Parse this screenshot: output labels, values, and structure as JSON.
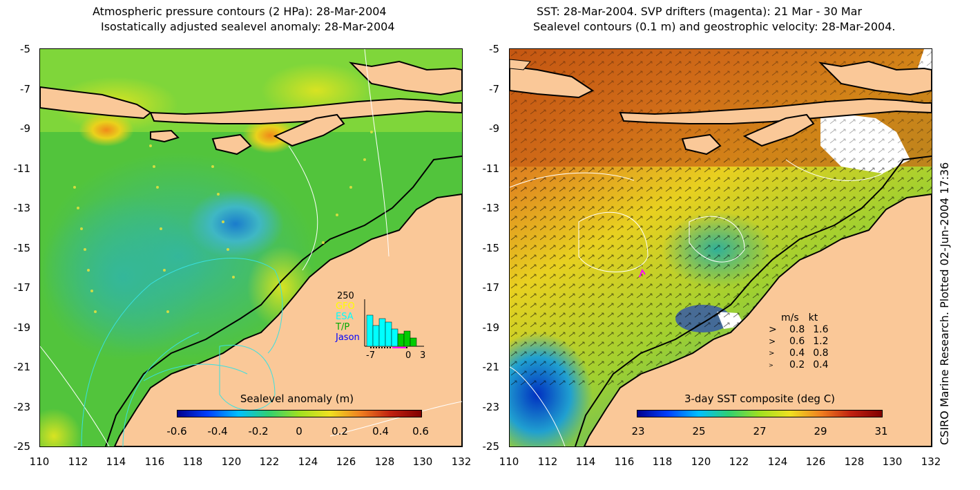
{
  "left_panel": {
    "title_line1": "Atmospheric pressure contours (2 HPa): 28-Mar-2004",
    "title_line2": "Isostatically adjusted sealevel anomaly: 28-Mar-2004",
    "colorbar_title": "Sealevel anomaly (m)",
    "colorbar_ticks": [
      "-0.6",
      "-0.4",
      "-0.2",
      "0",
      "0.2",
      "0.4",
      "0.6"
    ],
    "inset": {
      "ymax_label": "250",
      "satellites": [
        "GFO",
        "ESA",
        "T/P",
        "Jason"
      ],
      "satellite_colors": [
        "#ffff00",
        "#00ffff",
        "#00cc00",
        "#0000ff"
      ],
      "x_ticks": [
        "-7",
        "0",
        "3"
      ]
    }
  },
  "right_panel": {
    "title_line1": "SST: 28-Mar-2004. SVP drifters (magenta): 21 Mar - 30 Mar",
    "title_line2": "Sealevel contours (0.1 m) and geostrophic velocity: 28-Mar-2004.",
    "colorbar_title": "3-day SST composite (deg C)",
    "colorbar_ticks": [
      "23",
      "25",
      "27",
      "29",
      "31"
    ],
    "velocity_legend": {
      "header_ms": "m/s",
      "header_kt": "kt",
      "rows": [
        {
          "ms": "0.8",
          "kt": "1.6"
        },
        {
          "ms": "0.6",
          "kt": "1.2"
        },
        {
          "ms": "0.4",
          "kt": "0.8"
        },
        {
          "ms": "0.2",
          "kt": "0.4"
        }
      ]
    }
  },
  "axes": {
    "lat_ticks": [
      "-5",
      "-7",
      "-9",
      "-11",
      "-13",
      "-15",
      "-17",
      "-19",
      "-21",
      "-23",
      "-25"
    ],
    "lon_ticks": [
      "110",
      "112",
      "114",
      "116",
      "118",
      "120",
      "122",
      "124",
      "126",
      "128",
      "130",
      "132"
    ]
  },
  "credit": "CSIRO Marine Research. Plotted 02-Jun-2004 17:36",
  "colors": {
    "land": "#fac898",
    "coast": "#000000",
    "drifter": "#ff00ff"
  }
}
